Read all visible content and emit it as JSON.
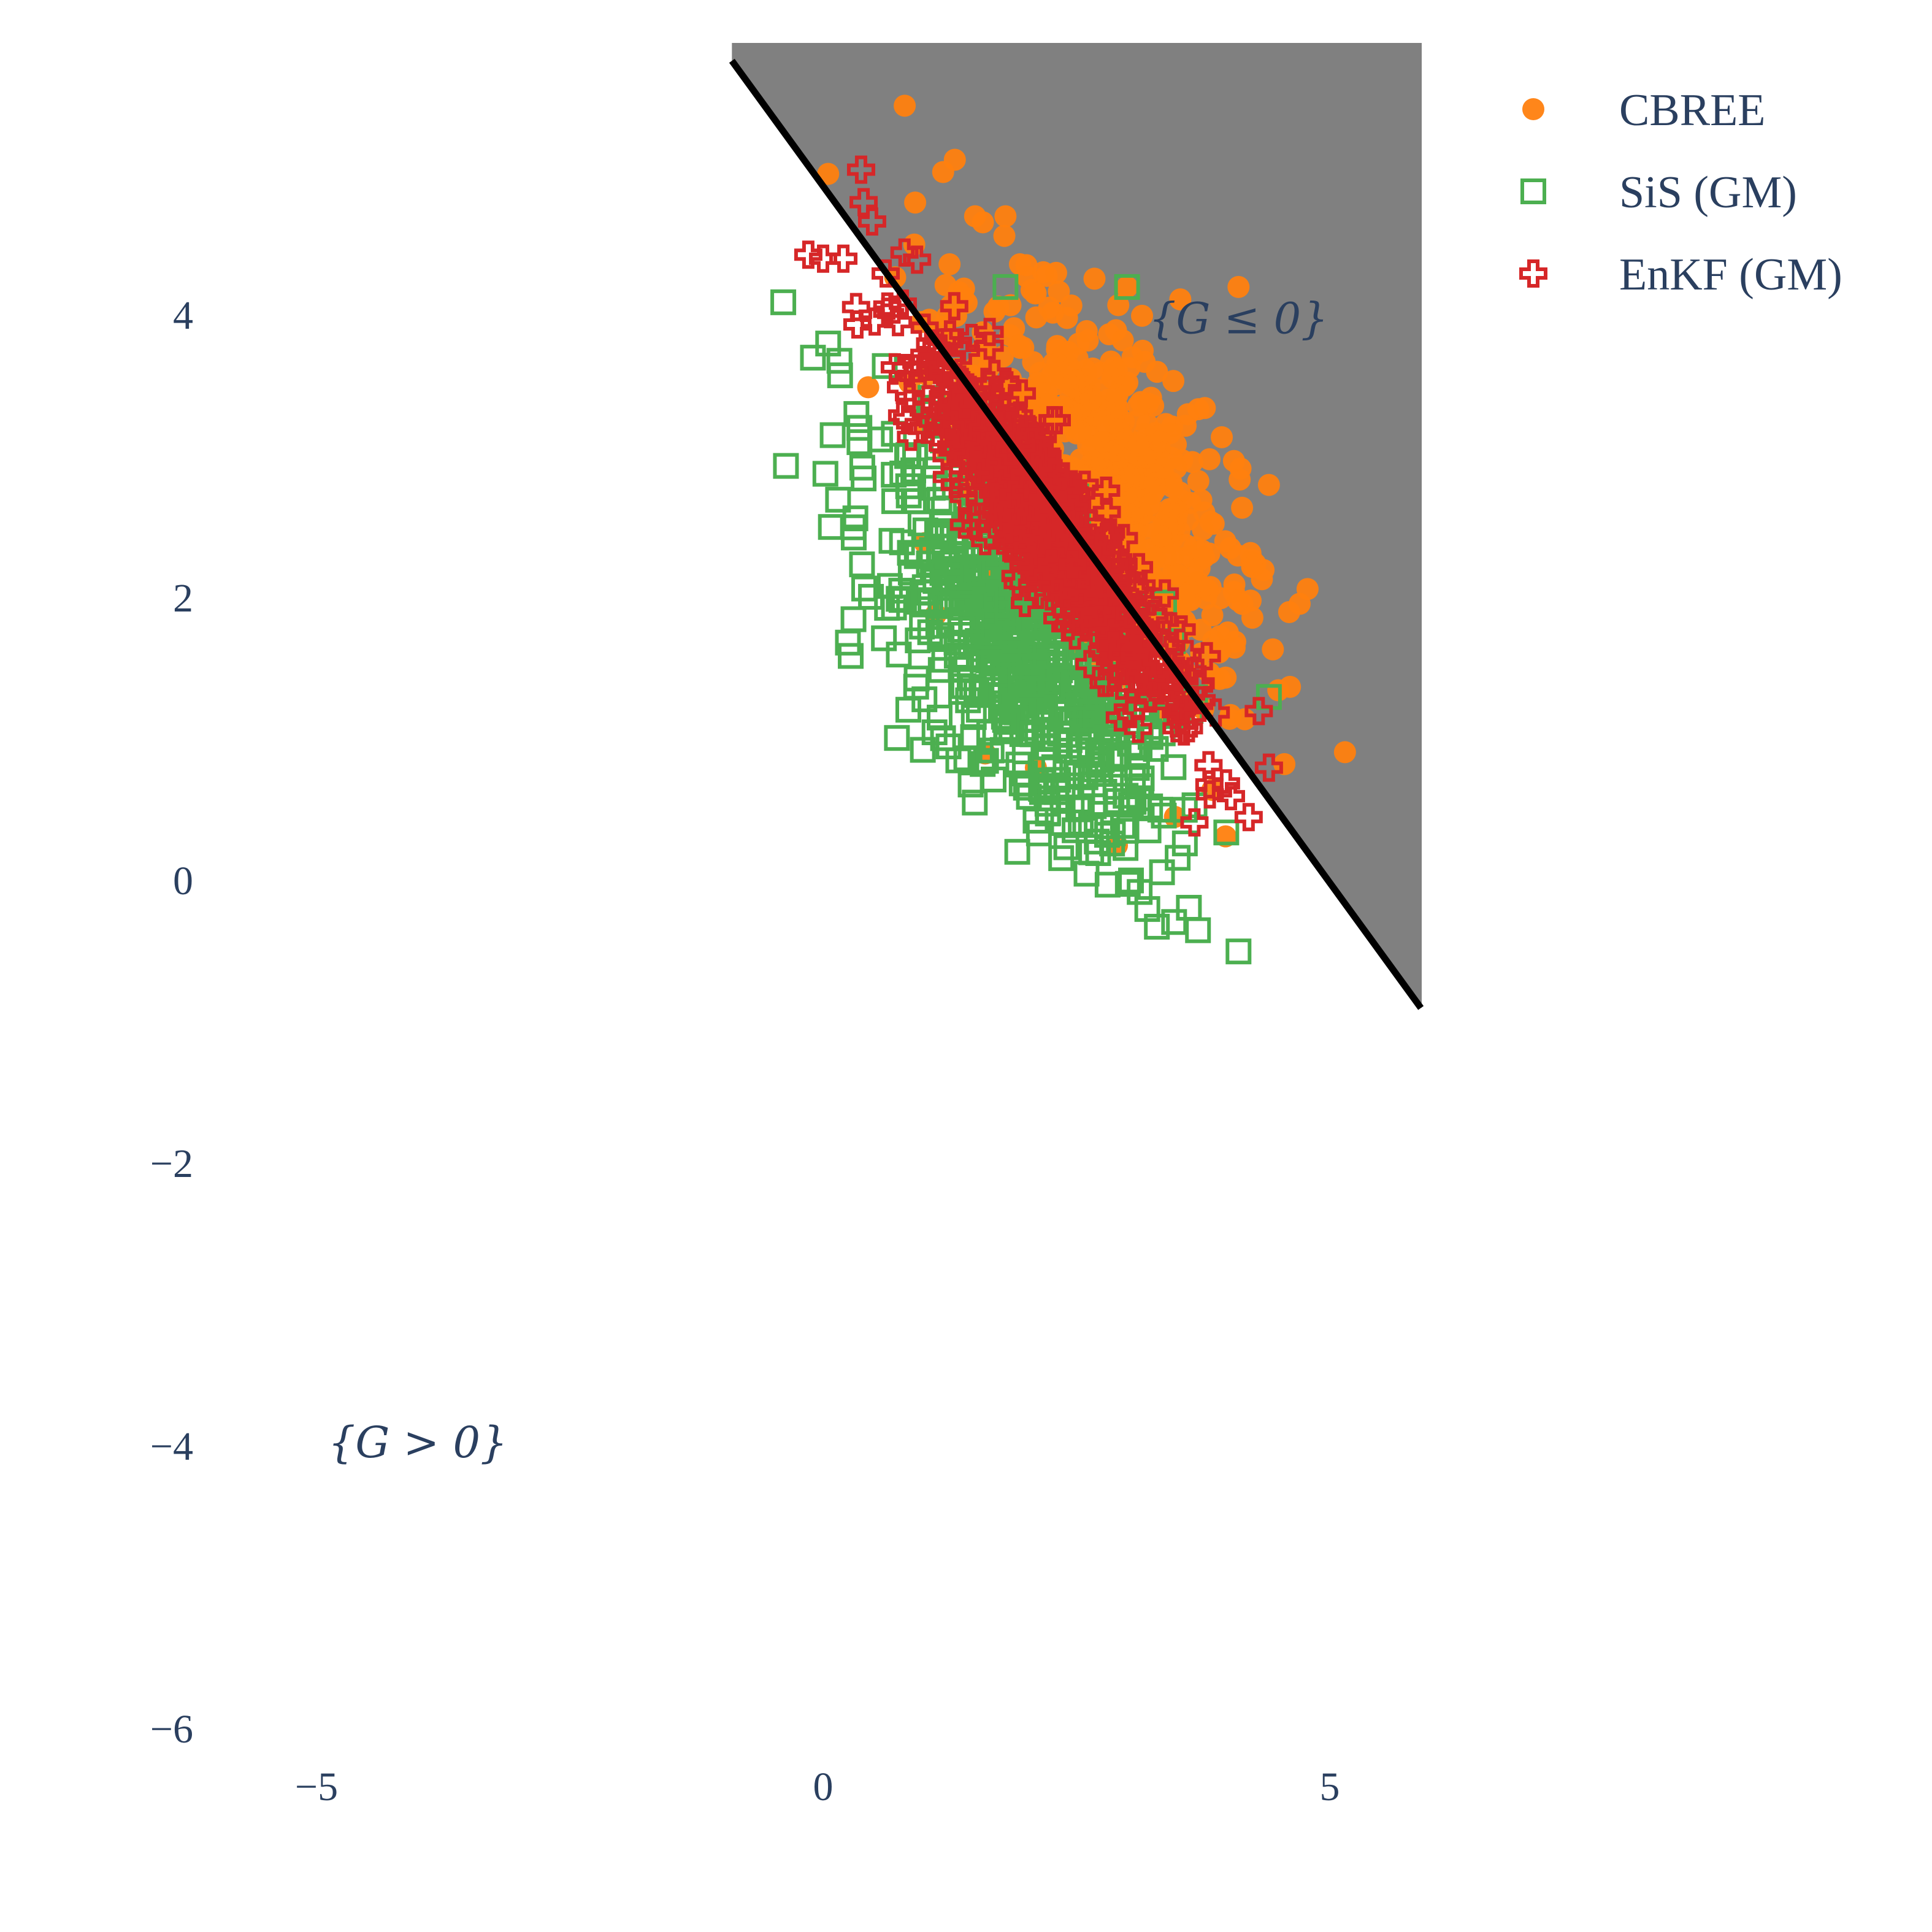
{
  "chart_data": {
    "type": "scatter",
    "title": "",
    "xlabel": "",
    "ylabel": "",
    "xlim": [
      -6,
      9
    ],
    "ylim": [
      -6.5,
      5.8
    ],
    "xticks": [
      -5,
      0,
      5
    ],
    "yticks": [
      -6,
      -4,
      -2,
      0,
      2,
      4
    ],
    "xtick_labels": [
      "−5",
      "0",
      "5"
    ],
    "ytick_labels": [
      "−6",
      "−4",
      "−2",
      "0",
      "2",
      "4"
    ],
    "grid": false,
    "legend_position": "top-right",
    "boundary": {
      "description_line": "G = 0",
      "points": [
        [
          -0.9,
          5.8
        ],
        [
          5.9,
          -0.9
        ]
      ],
      "failure_region_color": "#808080",
      "line_color": "#000000"
    },
    "annotations": [
      {
        "text": "{G ≤ 0}",
        "x": 4.1,
        "y": 3.95
      },
      {
        "text": "{G > 0}",
        "x": -4.0,
        "y": -4.0
      }
    ],
    "series": [
      {
        "name": "CBREE",
        "marker": "circle",
        "color": "#ff7f0e",
        "center": [
          2.6,
          2.6
        ],
        "n": 650,
        "x": [
          0.05,
          1.3,
          1.8,
          1.5,
          0.9,
          3.0,
          4.1,
          2.3,
          4.4,
          4.6,
          1.6,
          2.1,
          2.9,
          3.6
        ],
        "y": [
          5.0,
          5.1,
          4.7,
          4.7,
          4.5,
          4.2,
          4.2,
          4.3,
          2.8,
          1.9,
          0.9,
          0.8,
          0.25,
          3.3
        ]
      },
      {
        "name": "SiS (GM)",
        "marker": "square-open",
        "color": "#4caf50",
        "center": [
          2.2,
          1.9
        ],
        "n": 650,
        "x": [
          -0.1,
          0.05,
          0.3,
          0.3,
          1.1,
          2.6,
          3.2,
          3.7,
          4.1,
          3.0,
          1.8,
          4.4
        ],
        "y": [
          3.7,
          3.8,
          2.5,
          1.85,
          1.05,
          0.05,
          -0.2,
          -0.35,
          -0.5,
          4.2,
          4.2,
          1.3
        ]
      },
      {
        "name": "EnKF (GM)",
        "marker": "cross-open",
        "color": "#d62728",
        "center": [
          2.2,
          2.55
        ],
        "n": 650,
        "x": [
          0.4,
          0.0,
          4.4,
          4.2,
          4.3,
          0.2
        ],
        "y": [
          4.8,
          4.4,
          0.8,
          0.45,
          1.2,
          4.4
        ]
      }
    ]
  }
}
